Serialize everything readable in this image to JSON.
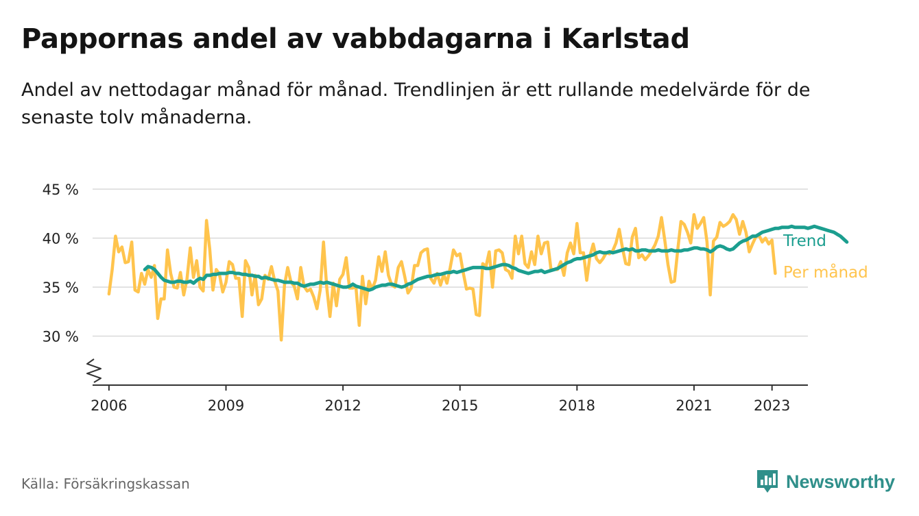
{
  "title": "Pappornas andel av vabbdagarna i Karlstad",
  "subtitle": "Andel av nettodagar månad för månad. Trendlinjen är ett rullande medelvärde för de senaste tolv månaderna.",
  "source": "Källa: Försäkringskassan",
  "brand": "Newsworthy",
  "colors": {
    "monthly": "#ffc44d",
    "trend": "#1b9e8f",
    "brand": "#2f8f8a",
    "grid": "#d9d9d9",
    "axis": "#333333"
  },
  "chart_data": {
    "type": "line",
    "title": "Pappornas andel av vabbdagarna i Karlstad",
    "ylim": [
      25,
      45
    ],
    "xlim": [
      2005.58,
      2023.92
    ],
    "y_ticks": [
      30,
      35,
      40,
      45
    ],
    "y_tick_labels": [
      "30 %",
      "35 %",
      "40 %",
      "45 %"
    ],
    "x_ticks": [
      2006,
      2009,
      2012,
      2015,
      2018,
      2021,
      2023
    ],
    "x_tick_labels": [
      "2006",
      "2009",
      "2012",
      "2015",
      "2018",
      "2021",
      "2023"
    ],
    "y_axis_broken": true,
    "grid": "horizontal",
    "legend": "inline labels at right end of lines",
    "series": [
      {
        "name": "Per månad",
        "x_start": 2006.0,
        "x_step": 0.08333,
        "values": [
          34.3,
          36.8,
          40.2,
          38.6,
          39.1,
          37.5,
          37.6,
          39.6,
          34.7,
          34.5,
          36.4,
          35.3,
          36.8,
          36.0,
          37.2,
          31.8,
          33.8,
          33.8,
          38.8,
          36.4,
          35.0,
          34.9,
          36.5,
          34.2,
          35.8,
          39.0,
          36.0,
          37.7,
          35.0,
          34.6,
          41.8,
          38.9,
          34.7,
          36.8,
          36.3,
          34.5,
          35.5,
          37.6,
          37.3,
          35.9,
          35.9,
          32.0,
          37.7,
          37.0,
          34.2,
          36.2,
          33.2,
          33.8,
          36.2,
          35.8,
          37.1,
          35.6,
          34.6,
          29.6,
          35.2,
          37.0,
          35.5,
          35.1,
          33.8,
          37.0,
          35.1,
          34.6,
          34.8,
          34.0,
          32.8,
          34.7,
          39.6,
          35.0,
          32.0,
          35.4,
          33.1,
          35.8,
          36.3,
          38.0,
          34.9,
          34.9,
          35.0,
          31.1,
          36.1,
          33.3,
          35.6,
          34.8,
          35.7,
          38.1,
          36.6,
          38.6,
          36.2,
          35.2,
          35.0,
          37.0,
          37.6,
          36.1,
          34.4,
          34.9,
          37.2,
          37.2,
          38.5,
          38.8,
          38.9,
          35.9,
          35.4,
          36.4,
          35.2,
          36.3,
          35.4,
          37.0,
          38.8,
          38.2,
          38.4,
          36.5,
          34.8,
          34.9,
          34.8,
          32.2,
          32.1,
          37.4,
          37.1,
          38.6,
          35.0,
          38.7,
          38.8,
          38.5,
          36.8,
          36.6,
          35.9,
          40.2,
          38.4,
          40.2,
          37.4,
          37.0,
          38.6,
          37.3,
          40.2,
          38.4,
          39.5,
          39.6,
          36.8,
          36.8,
          36.8,
          37.6,
          36.2,
          38.5,
          39.5,
          38.4,
          41.5,
          38.5,
          38.5,
          35.7,
          38.2,
          39.4,
          37.9,
          37.5,
          37.9,
          38.5,
          38.4,
          38.7,
          39.5,
          40.9,
          39.0,
          37.4,
          37.3,
          40.1,
          41.0,
          38.0,
          38.3,
          37.8,
          38.2,
          38.7,
          39.3,
          40.2,
          42.1,
          39.8,
          37.3,
          35.5,
          35.6,
          38.8,
          41.7,
          41.4,
          40.6,
          39.5,
          42.4,
          41.0,
          41.5,
          42.1,
          39.6,
          34.2,
          39.7,
          40.1,
          41.6,
          41.2,
          41.4,
          41.7,
          42.4,
          41.9,
          40.4,
          41.7,
          40.6,
          38.6,
          39.4,
          40.1,
          40.3,
          39.6,
          40.0,
          39.4,
          39.8,
          36.4
        ]
      },
      {
        "name": "Trend",
        "x_start": 2006.92,
        "x_step": 0.08333,
        "values": [
          36.8,
          37.1,
          37.0,
          36.8,
          36.4,
          36.0,
          35.7,
          35.6,
          35.5,
          35.5,
          35.6,
          35.6,
          35.5,
          35.5,
          35.6,
          35.4,
          35.7,
          35.9,
          35.8,
          36.2,
          36.2,
          36.3,
          36.3,
          36.4,
          36.4,
          36.4,
          36.5,
          36.5,
          36.4,
          36.4,
          36.3,
          36.3,
          36.2,
          36.2,
          36.1,
          36.1,
          35.9,
          36.0,
          35.9,
          35.8,
          35.7,
          35.7,
          35.6,
          35.5,
          35.5,
          35.5,
          35.4,
          35.4,
          35.2,
          35.1,
          35.2,
          35.3,
          35.3,
          35.4,
          35.5,
          35.4,
          35.5,
          35.4,
          35.3,
          35.2,
          35.1,
          35.0,
          35.0,
          35.1,
          35.3,
          35.1,
          35.0,
          34.9,
          34.8,
          34.7,
          34.8,
          35.0,
          35.1,
          35.2,
          35.2,
          35.3,
          35.3,
          35.2,
          35.1,
          35.0,
          35.1,
          35.3,
          35.4,
          35.6,
          35.8,
          35.9,
          36.0,
          36.1,
          36.1,
          36.2,
          36.3,
          36.3,
          36.4,
          36.5,
          36.5,
          36.6,
          36.5,
          36.6,
          36.7,
          36.8,
          36.9,
          37.0,
          37.0,
          37.0,
          37.0,
          36.9,
          36.9,
          37.0,
          37.1,
          37.2,
          37.3,
          37.3,
          37.2,
          37.0,
          36.9,
          36.7,
          36.6,
          36.5,
          36.4,
          36.5,
          36.6,
          36.6,
          36.7,
          36.5,
          36.6,
          36.7,
          36.8,
          36.9,
          37.1,
          37.3,
          37.5,
          37.6,
          37.8,
          37.9,
          37.9,
          38.0,
          38.1,
          38.2,
          38.3,
          38.5,
          38.6,
          38.5,
          38.5,
          38.6,
          38.5,
          38.6,
          38.7,
          38.8,
          38.9,
          38.8,
          38.9,
          38.7,
          38.7,
          38.8,
          38.8,
          38.7,
          38.7,
          38.7,
          38.8,
          38.7,
          38.7,
          38.7,
          38.8,
          38.7,
          38.7,
          38.7,
          38.8,
          38.8,
          38.9,
          39.0,
          39.0,
          38.9,
          38.9,
          38.8,
          38.6,
          38.8,
          39.1,
          39.2,
          39.1,
          38.9,
          38.8,
          38.9,
          39.2,
          39.5,
          39.7,
          39.8,
          40.0,
          40.2,
          40.2,
          40.4,
          40.6,
          40.7,
          40.8,
          40.9,
          41.0,
          41.0,
          41.1,
          41.1,
          41.1,
          41.2,
          41.1,
          41.1,
          41.1,
          41.1,
          41.0,
          41.1,
          41.2,
          41.1,
          41.0,
          40.9,
          40.8,
          40.7,
          40.6,
          40.4,
          40.2,
          39.9,
          39.6
        ]
      }
    ]
  }
}
